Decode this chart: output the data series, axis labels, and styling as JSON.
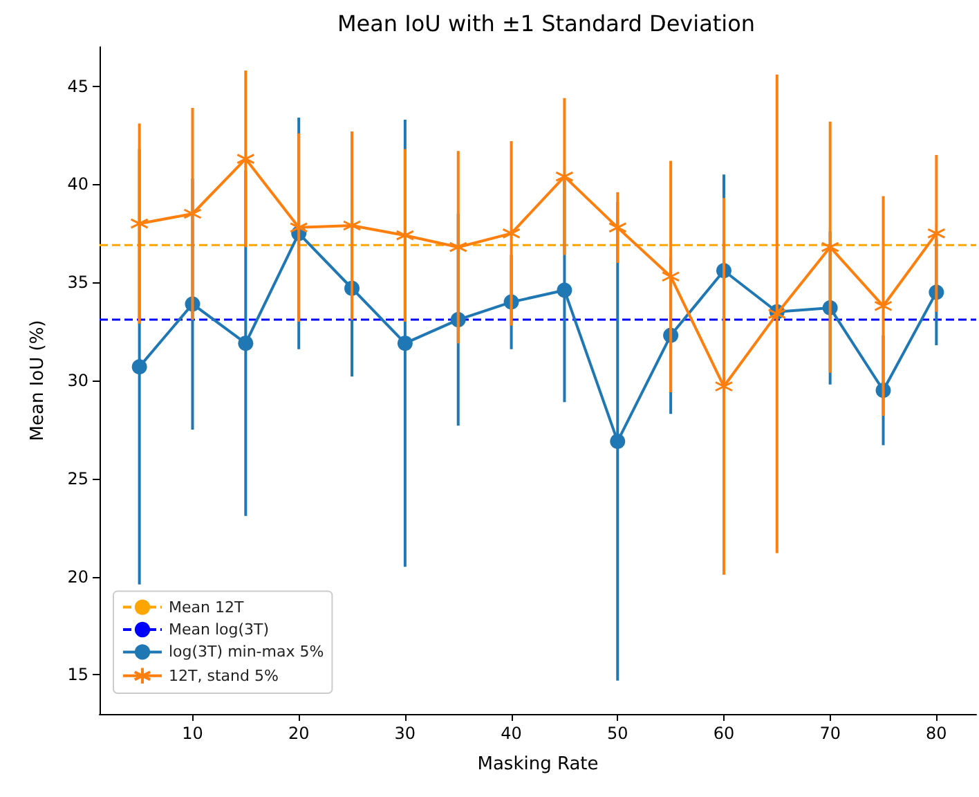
{
  "chart_data": {
    "type": "line",
    "title": "Mean IoU with ±1 Standard Deviation",
    "xlabel": "Masking Rate",
    "ylabel": "Mean IoU (%)",
    "x": [
      5,
      10,
      15,
      20,
      25,
      30,
      35,
      40,
      45,
      50,
      55,
      60,
      65,
      70,
      75,
      80
    ],
    "series": [
      {
        "name": "log(3T) min-max 5%",
        "color": "#1f77b4",
        "marker": "circle",
        "values": [
          30.7,
          33.9,
          31.9,
          37.5,
          34.7,
          31.9,
          33.1,
          34.0,
          34.6,
          26.9,
          32.3,
          35.6,
          33.5,
          33.7,
          29.5,
          34.5
        ],
        "errors": [
          11.1,
          6.4,
          8.8,
          5.9,
          4.5,
          11.4,
          5.4,
          2.4,
          5.7,
          12.2,
          4.0,
          4.9,
          null,
          3.9,
          2.8,
          2.7
        ]
      },
      {
        "name": "12T, stand 5%",
        "color": "#ff7f0e",
        "marker": "cross",
        "values": [
          38.0,
          38.5,
          41.3,
          37.8,
          37.9,
          37.4,
          36.8,
          37.5,
          40.4,
          37.8,
          35.3,
          29.7,
          33.4,
          36.8,
          33.8,
          37.5
        ],
        "errors": [
          5.1,
          5.4,
          4.5,
          4.8,
          4.8,
          4.4,
          4.9,
          4.7,
          4.0,
          1.8,
          5.9,
          9.6,
          12.2,
          6.4,
          5.6,
          4.0
        ]
      }
    ],
    "ref_lines": [
      {
        "axis": "y",
        "value": 36.9,
        "label": "Mean 12T",
        "color": "#ffa500",
        "line_style": "dashed"
      },
      {
        "axis": "y",
        "value": 33.1,
        "label": "Mean log(3T)",
        "color": "#0000ff",
        "line_style": "dashed"
      }
    ],
    "xlim": [
      1.25,
      83.75
    ],
    "xticks": [
      10,
      20,
      30,
      40,
      50,
      60,
      70,
      80
    ],
    "ylim": [
      13,
      47
    ],
    "yticks": [
      15,
      20,
      25,
      30,
      35,
      40,
      45
    ],
    "grid": false,
    "legend": "bottom left"
  }
}
